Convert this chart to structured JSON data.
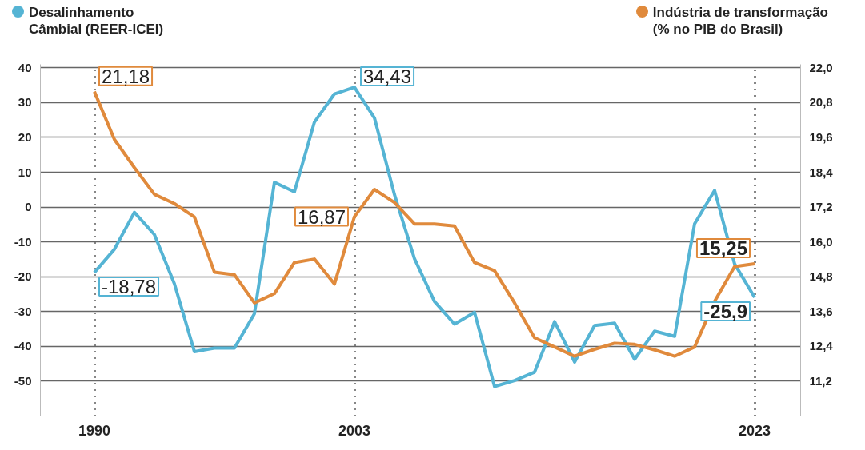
{
  "chart_data": {
    "type": "line",
    "x": [
      1990,
      1991,
      1992,
      1993,
      1994,
      1995,
      1996,
      1997,
      1998,
      1999,
      2000,
      2001,
      2002,
      2003,
      2004,
      2005,
      2006,
      2007,
      2008,
      2009,
      2010,
      2011,
      2012,
      2013,
      2014,
      2015,
      2016,
      2017,
      2018,
      2019,
      2020,
      2021,
      2022,
      2023
    ],
    "series": [
      {
        "name": "Desalinhamento\nCâmbial (REER-ICEI)",
        "color": "#55b4d4",
        "values": [
          -18.78,
          -12.1,
          -1.5,
          -7.9,
          -22,
          -41.5,
          -40.5,
          -40.5,
          -30.6,
          7.1,
          4.4,
          24.4,
          32.5,
          34.43,
          25.6,
          3.6,
          -14.8,
          -27.1,
          -33.6,
          -30.2,
          -51.5,
          -49.8,
          -47.4,
          -32.9,
          -44.5,
          -34,
          -33.3,
          -43.7,
          -35.6,
          -37.1,
          -4.8,
          4.8,
          -16.3,
          -25.9
        ],
        "value_labels": [
          "-18,78",
          null,
          null,
          null,
          null,
          null,
          null,
          null,
          null,
          null,
          null,
          null,
          null,
          "34,43",
          null,
          null,
          null,
          null,
          null,
          null,
          null,
          null,
          null,
          null,
          null,
          null,
          null,
          null,
          null,
          null,
          null,
          null,
          null,
          "-25,9"
        ]
      },
      {
        "name": "Indústria de transformação\n(% no PIB do Brasil)",
        "color": "#e08a3c",
        "axis": "y2",
        "values": [
          21.18,
          19.53,
          18.56,
          17.64,
          17.32,
          16.86,
          14.96,
          14.87,
          13.9,
          14.22,
          15.29,
          15.41,
          14.55,
          16.87,
          17.81,
          17.36,
          16.62,
          16.62,
          16.55,
          15.29,
          15.01,
          13.9,
          12.7,
          12.38,
          12.06,
          12.3,
          12.51,
          12.47,
          12.28,
          12.06,
          12.38,
          13.95,
          15.15,
          15.25
        ],
        "value_labels": [
          "21,18",
          null,
          null,
          null,
          null,
          null,
          null,
          null,
          null,
          null,
          null,
          null,
          null,
          "16,87",
          null,
          null,
          null,
          null,
          null,
          null,
          null,
          null,
          null,
          null,
          null,
          null,
          null,
          null,
          null,
          null,
          null,
          null,
          null,
          "15,25"
        ]
      }
    ],
    "xlim": [
      1987.3,
      2025.3
    ],
    "xticks": [
      1990,
      2003,
      2023
    ],
    "ylim": [
      -60,
      41
    ],
    "yticks": [
      40,
      30,
      20,
      10,
      0,
      -10,
      -20,
      -30,
      -40,
      -50
    ],
    "y2lim": [
      10.0,
      22.12
    ],
    "y2ticks": [
      {
        "value": 22.0,
        "label": "22,0"
      },
      {
        "value": 20.8,
        "label": "20,8"
      },
      {
        "value": 19.6,
        "label": "19,6"
      },
      {
        "value": 18.4,
        "label": "18,4"
      },
      {
        "value": 17.2,
        "label": "17,2"
      },
      {
        "value": 16.0,
        "label": "16,0"
      },
      {
        "value": 14.8,
        "label": "14,8"
      },
      {
        "value": 13.6,
        "label": "13,6"
      },
      {
        "value": 12.4,
        "label": "12,4"
      },
      {
        "value": 11.2,
        "label": "11,2"
      }
    ],
    "grid": true,
    "legend": "top",
    "marker": "none",
    "line_style": "solid"
  }
}
